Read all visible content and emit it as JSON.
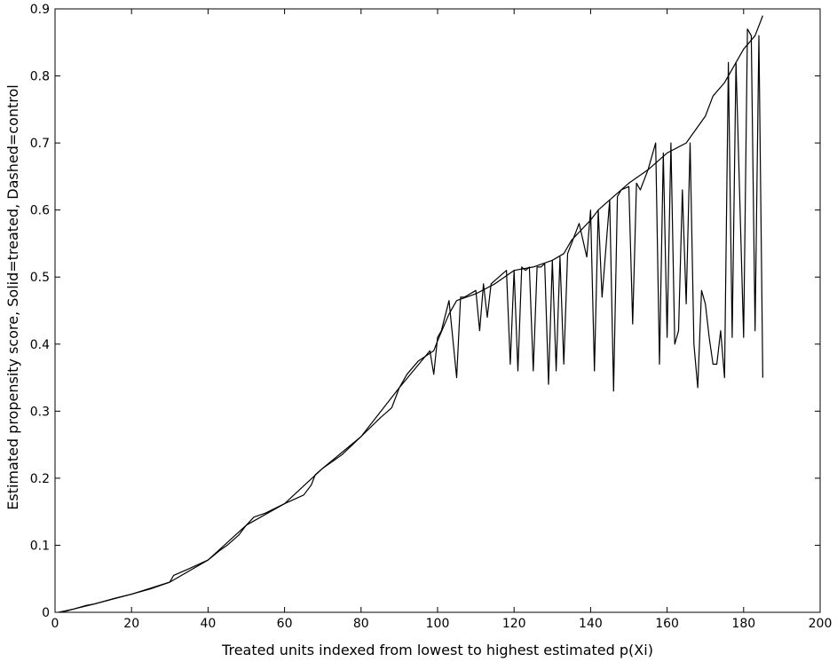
{
  "chart_data": {
    "type": "line",
    "title": "",
    "xlabel": "Treated units indexed from lowest to highest estimated p(Xi)",
    "ylabel": "Estimated propensity score, Solid=treated, Dashed=control",
    "xlim": [
      0,
      200
    ],
    "ylim": [
      0,
      0.9
    ],
    "xticks": [
      0,
      20,
      40,
      60,
      80,
      100,
      120,
      140,
      160,
      180,
      200
    ],
    "xtick_labels": [
      "0",
      "20",
      "40",
      "60",
      "80",
      "100",
      "120",
      "140",
      "160",
      "180",
      "200"
    ],
    "yticks": [
      0,
      0.1,
      0.2,
      0.3,
      0.4,
      0.5,
      0.6,
      0.7,
      0.8,
      0.9
    ],
    "ytick_labels": [
      "0",
      "0.1",
      "0.2",
      "0.3",
      "0.4",
      "0.5",
      "0.6",
      "0.7",
      "0.8",
      "0.9"
    ],
    "grid": false,
    "legend": "none",
    "line_color": "#000000",
    "series": [
      {
        "style": "solid",
        "x": [
          1,
          3,
          5,
          8,
          10,
          15,
          20,
          25,
          30,
          31,
          35,
          40,
          43,
          45,
          48,
          50,
          52,
          55,
          60,
          65,
          67,
          68,
          70,
          75,
          80,
          85,
          88,
          90,
          92,
          95,
          99,
          100,
          103,
          105,
          110,
          115,
          120,
          125,
          130,
          133,
          135,
          140,
          142,
          145,
          150,
          155,
          160,
          165,
          170,
          172,
          175,
          176,
          180,
          183,
          185
        ],
        "y": [
          0.0,
          0.002,
          0.005,
          0.01,
          0.012,
          0.02,
          0.027,
          0.035,
          0.045,
          0.055,
          0.065,
          0.078,
          0.092,
          0.1,
          0.115,
          0.13,
          0.142,
          0.148,
          0.162,
          0.175,
          0.19,
          0.205,
          0.215,
          0.235,
          0.262,
          0.29,
          0.305,
          0.335,
          0.355,
          0.375,
          0.39,
          0.405,
          0.445,
          0.465,
          0.475,
          0.49,
          0.51,
          0.515,
          0.525,
          0.535,
          0.555,
          0.585,
          0.6,
          0.615,
          0.64,
          0.66,
          0.685,
          0.7,
          0.74,
          0.77,
          0.79,
          0.8,
          0.84,
          0.86,
          0.89
        ]
      },
      {
        "style": "dashed",
        "x": [
          1,
          5,
          10,
          20,
          30,
          40,
          50,
          60,
          70,
          80,
          90,
          98,
          99,
          100,
          101,
          103,
          105,
          106,
          107,
          110,
          111,
          112,
          113,
          114,
          116,
          118,
          119,
          120,
          121,
          122,
          123,
          124,
          125,
          126,
          127,
          128,
          129,
          130,
          131,
          132,
          133,
          134,
          135,
          137,
          139,
          140,
          141,
          142,
          143,
          145,
          146,
          147,
          148,
          150,
          151,
          152,
          153,
          155,
          157,
          158,
          159,
          160,
          161,
          162,
          163,
          164,
          165,
          166,
          167,
          168,
          169,
          170,
          171,
          172,
          173,
          174,
          175,
          176,
          177,
          178,
          180,
          181,
          182,
          183,
          184,
          185
        ],
        "y": [
          0.0,
          0.005,
          0.012,
          0.027,
          0.045,
          0.078,
          0.13,
          0.162,
          0.215,
          0.262,
          0.335,
          0.39,
          0.355,
          0.41,
          0.42,
          0.465,
          0.35,
          0.47,
          0.47,
          0.48,
          0.42,
          0.49,
          0.44,
          0.49,
          0.5,
          0.51,
          0.37,
          0.51,
          0.36,
          0.515,
          0.51,
          0.515,
          0.36,
          0.515,
          0.515,
          0.52,
          0.34,
          0.525,
          0.36,
          0.53,
          0.37,
          0.535,
          0.55,
          0.58,
          0.53,
          0.6,
          0.36,
          0.6,
          0.47,
          0.615,
          0.33,
          0.62,
          0.63,
          0.635,
          0.43,
          0.64,
          0.63,
          0.66,
          0.7,
          0.37,
          0.685,
          0.41,
          0.7,
          0.4,
          0.42,
          0.63,
          0.46,
          0.7,
          0.4,
          0.335,
          0.48,
          0.46,
          0.41,
          0.37,
          0.37,
          0.42,
          0.35,
          0.82,
          0.41,
          0.82,
          0.41,
          0.87,
          0.86,
          0.42,
          0.86,
          0.35
        ]
      }
    ]
  }
}
